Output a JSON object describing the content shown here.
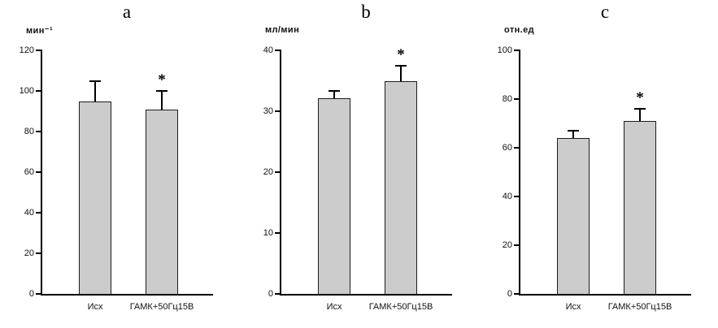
{
  "chart_data": [
    {
      "type": "bar",
      "panel_label": "a",
      "title": "",
      "ylabel": "мин⁻¹",
      "xlabel": "",
      "categories": [
        "Исх",
        "ГАМК+50Гц15В"
      ],
      "values": [
        95,
        91
      ],
      "errors": [
        10,
        9
      ],
      "significant": [
        false,
        true
      ],
      "marker": "*",
      "ylim": [
        0,
        120
      ],
      "yticks": [
        0,
        20,
        40,
        60,
        80,
        100,
        120
      ],
      "grid": "off",
      "legend": "none",
      "bar_color": "#cccccc",
      "bar_border": "#1c1c1c"
    },
    {
      "type": "bar",
      "panel_label": "b",
      "title": "",
      "ylabel": "мл/мин",
      "xlabel": "",
      "categories": [
        "Исх",
        "ГАМК+50Гц15В"
      ],
      "values": [
        32.2,
        35
      ],
      "errors": [
        1.2,
        2.5
      ],
      "significant": [
        false,
        true
      ],
      "marker": "*",
      "ylim": [
        0,
        40
      ],
      "yticks": [
        0,
        10,
        20,
        30,
        40
      ],
      "grid": "off",
      "legend": "none",
      "bar_color": "#cccccc",
      "bar_border": "#1c1c1c"
    },
    {
      "type": "bar",
      "panel_label": "c",
      "title": "",
      "ylabel": "отн.ед",
      "xlabel": "",
      "categories": [
        "Исх",
        "ГАМК+50Гц15В"
      ],
      "values": [
        64,
        71
      ],
      "errors": [
        3,
        5
      ],
      "significant": [
        false,
        true
      ],
      "marker": "*",
      "ylim": [
        0,
        100
      ],
      "yticks": [
        0,
        20,
        40,
        60,
        80,
        100
      ],
      "grid": "off",
      "legend": "none",
      "bar_color": "#cccccc",
      "bar_border": "#1c1c1c"
    }
  ]
}
